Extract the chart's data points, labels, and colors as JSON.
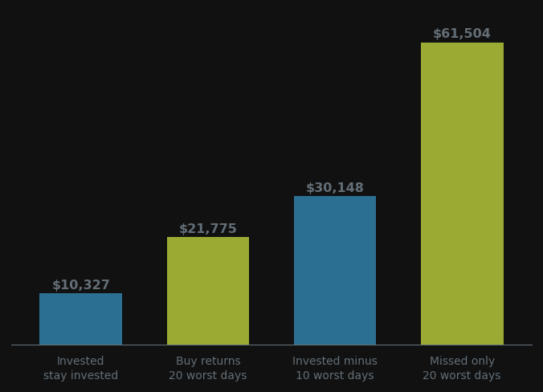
{
  "categories": [
    "Invested\nstay invested",
    "Buy returns\n20 worst days",
    "Invested minus\n10 worst days",
    "Missed only\n20 worst days"
  ],
  "values": [
    10327,
    21775,
    30148,
    61504
  ],
  "bar_colors": [
    "#2b6f93",
    "#9aaa33",
    "#2b6f93",
    "#9aaa33"
  ],
  "bar_labels": [
    "$10,327",
    "$21,775",
    "$30,148",
    "$61,504"
  ],
  "background_color": "#111111",
  "text_color": "#636e77",
  "label_fontsize": 11.5,
  "tick_fontsize": 10,
  "ylim": [
    0,
    68000
  ],
  "figsize": [
    6.76,
    4.89
  ],
  "dpi": 100,
  "bar_width": 0.65
}
